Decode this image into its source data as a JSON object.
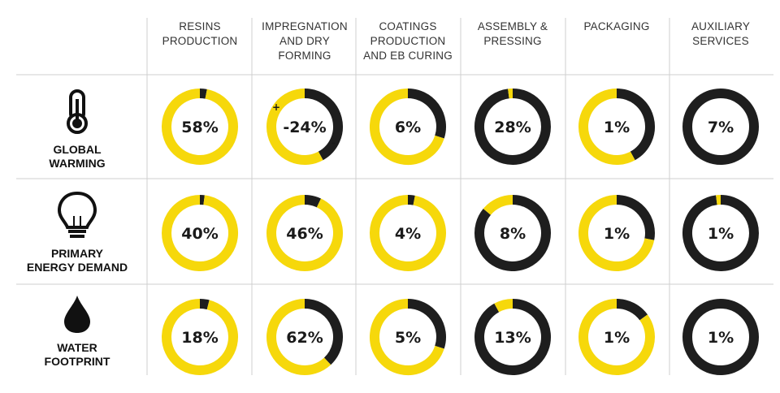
{
  "colors": {
    "accent": "#f6d80b",
    "dark": "#1e1e1e",
    "grid": "#cfcfcf"
  },
  "columns": [
    {
      "lines": [
        "RESINS",
        "PRODUCTION"
      ]
    },
    {
      "lines": [
        "IMPREGNATION",
        "AND DRY",
        "FORMING"
      ]
    },
    {
      "lines": [
        "COATINGS",
        "PRODUCTION",
        "AND EB CURING"
      ]
    },
    {
      "lines": [
        "ASSEMBLY &",
        "PRESSING"
      ]
    },
    {
      "lines": [
        "PACKAGING"
      ]
    },
    {
      "lines": [
        "AUXILIARY",
        "SERVICES"
      ]
    }
  ],
  "rows": [
    {
      "lines": [
        "GLOBAL",
        "WARMING"
      ],
      "icon": "thermometer-icon"
    },
    {
      "lines": [
        "PRIMARY",
        "ENERGY DEMAND"
      ],
      "icon": "lightbulb-icon"
    },
    {
      "lines": [
        "WATER",
        "FOOTPRINT"
      ],
      "icon": "water-drop-icon"
    }
  ],
  "chart_data": {
    "type": "donut-matrix",
    "note_signs": {
      "plus": "+",
      "minus": "-"
    },
    "cells": [
      [
        {
          "label": "58%",
          "value": 58
        },
        {
          "label": "-24%",
          "value": 24,
          "negative": true
        },
        {
          "label": "6%",
          "value": 6
        },
        {
          "label": "28%",
          "value": 28
        },
        {
          "label": "1%",
          "value": 1
        },
        {
          "label": "7%",
          "value": 7
        }
      ],
      [
        {
          "label": "40%",
          "value": 40
        },
        {
          "label": "46%",
          "value": 46
        },
        {
          "label": "4%",
          "value": 4
        },
        {
          "label": "8%",
          "value": 8
        },
        {
          "label": "1%",
          "value": 1
        },
        {
          "label": "1%",
          "value": 1
        }
      ],
      [
        {
          "label": "18%",
          "value": 18
        },
        {
          "label": "62%",
          "value": 62
        },
        {
          "label": "5%",
          "value": 5
        },
        {
          "label": "13%",
          "value": 13
        },
        {
          "label": "1%",
          "value": 1
        },
        {
          "label": "1%",
          "value": 1
        }
      ]
    ],
    "segments": [
      [
        {
          "yellow": 0.97,
          "dark": 0.03
        },
        {
          "yellow": 0.58,
          "dark": 0.42
        },
        {
          "yellow": 0.7,
          "dark": 0.3
        },
        {
          "yellow": 0.02,
          "dark": 0.98
        },
        {
          "yellow": 0.58,
          "dark": 0.42
        },
        {
          "yellow": 0.0,
          "dark": 1.0
        }
      ],
      [
        {
          "yellow": 0.98,
          "dark": 0.02
        },
        {
          "yellow": 0.93,
          "dark": 0.07
        },
        {
          "yellow": 0.97,
          "dark": 0.03
        },
        {
          "yellow": 0.14,
          "dark": 0.86
        },
        {
          "yellow": 0.72,
          "dark": 0.28
        },
        {
          "yellow": 0.02,
          "dark": 0.98
        }
      ],
      [
        {
          "yellow": 0.96,
          "dark": 0.04
        },
        {
          "yellow": 0.62,
          "dark": 0.38
        },
        {
          "yellow": 0.7,
          "dark": 0.3
        },
        {
          "yellow": 0.08,
          "dark": 0.92
        },
        {
          "yellow": 0.85,
          "dark": 0.15
        },
        {
          "yellow": 0.0,
          "dark": 1.0
        }
      ]
    ]
  }
}
